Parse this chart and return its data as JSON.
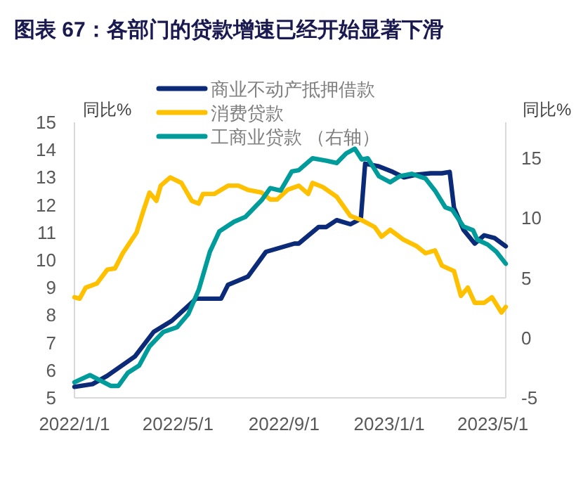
{
  "chart_data": {
    "type": "line",
    "title": "图表 67：各部门的贷款增速已经开始显著下滑",
    "ylabel": "同比%",
    "y2label": "同比%",
    "legend": "top",
    "grid": false,
    "marker": "none",
    "line_style": "solid",
    "xlim": [
      "2022-01-01",
      "2023-05-16"
    ],
    "xticks": [
      {
        "value": "2022-01-01",
        "label": "2022/1/1"
      },
      {
        "value": "2022-05-01",
        "label": "2022/5/1"
      },
      {
        "value": "2022-09-01",
        "label": "2022/9/1"
      },
      {
        "value": "2023-01-01",
        "label": "2023/1/1"
      },
      {
        "value": "2023-05-01",
        "label": "2023/5/1"
      }
    ],
    "ylim": [
      5,
      15
    ],
    "yticks": [
      5,
      6,
      7,
      8,
      9,
      10,
      11,
      12,
      13,
      14,
      15
    ],
    "y2lim": [
      -5,
      18
    ],
    "y2ticks": [
      -5,
      0,
      5,
      10,
      15
    ],
    "series": [
      {
        "name": "商业不动产抵押借款",
        "color": "#0b2a78",
        "x": [
          "2022-01-01",
          "2022-01-22",
          "2022-02-08",
          "2022-03-12",
          "2022-04-03",
          "2022-04-24",
          "2022-05-22",
          "2022-06-02",
          "2022-06-20",
          "2022-06-28",
          "2022-07-21",
          "2022-08-11",
          "2022-09-13",
          "2022-09-18",
          "2022-10-11",
          "2022-10-20",
          "2022-11-01",
          "2022-11-17",
          "2022-11-29",
          "2022-12-04",
          "2022-12-20",
          "2023-01-05",
          "2023-01-18",
          "2023-02-02",
          "2023-02-18",
          "2023-03-03",
          "2023-03-12",
          "2023-03-17",
          "2023-03-28",
          "2023-04-10",
          "2023-04-21",
          "2023-05-03",
          "2023-05-16"
        ],
        "values": [
          5.4,
          5.5,
          5.8,
          6.5,
          7.4,
          7.8,
          8.6,
          8.6,
          8.6,
          9.1,
          9.4,
          10.3,
          10.6,
          10.6,
          11.2,
          11.2,
          11.45,
          11.3,
          11.5,
          13.5,
          13.4,
          13.2,
          13.0,
          13.1,
          13.15,
          13.15,
          13.2,
          11.9,
          11.1,
          10.6,
          10.9,
          10.8,
          10.5
        ]
      },
      {
        "name": "消费贷款",
        "color": "#ffc000",
        "x": [
          "2022-01-01",
          "2022-01-07",
          "2022-01-14",
          "2022-01-27",
          "2022-02-08",
          "2022-02-17",
          "2022-02-26",
          "2022-03-14",
          "2022-03-22",
          "2022-03-29",
          "2022-04-06",
          "2022-04-11",
          "2022-04-22",
          "2022-05-05",
          "2022-05-17",
          "2022-05-25",
          "2022-05-30",
          "2022-06-12",
          "2022-06-28",
          "2022-07-10",
          "2022-07-21",
          "2022-08-06",
          "2022-08-16",
          "2022-08-24",
          "2022-09-05",
          "2022-09-18",
          "2022-09-29",
          "2022-10-04",
          "2022-10-16",
          "2022-11-01",
          "2022-11-17",
          "2022-11-30",
          "2022-12-15",
          "2022-12-23",
          "2023-01-02",
          "2023-01-17",
          "2023-02-02",
          "2023-02-12",
          "2023-02-23",
          "2023-03-03",
          "2023-03-17",
          "2023-03-25",
          "2023-04-02",
          "2023-04-10",
          "2023-04-21",
          "2023-04-30",
          "2023-05-11",
          "2023-05-16"
        ],
        "values": [
          8.65,
          8.6,
          9.0,
          9.15,
          9.65,
          9.7,
          10.25,
          11.0,
          11.8,
          12.45,
          12.15,
          12.7,
          13.0,
          12.8,
          12.15,
          12.05,
          12.4,
          12.4,
          12.7,
          12.7,
          12.55,
          12.45,
          12.2,
          12.2,
          12.55,
          12.7,
          12.4,
          12.8,
          12.65,
          12.3,
          11.6,
          11.45,
          11.2,
          10.85,
          11.1,
          10.75,
          10.5,
          10.25,
          10.35,
          9.8,
          9.6,
          8.7,
          9.0,
          8.45,
          8.45,
          8.65,
          8.1,
          8.3
        ]
      },
      {
        "name": "工商业贷款 （右轴）",
        "color": "#009b9b",
        "axis": "y2",
        "x": [
          "2022-01-01",
          "2022-01-07",
          "2022-01-19",
          "2022-02-12",
          "2022-02-21",
          "2022-03-04",
          "2022-03-17",
          "2022-03-29",
          "2022-04-14",
          "2022-04-30",
          "2022-05-13",
          "2022-05-25",
          "2022-06-07",
          "2022-06-18",
          "2022-07-05",
          "2022-07-18",
          "2022-08-06",
          "2022-08-16",
          "2022-08-28",
          "2022-09-10",
          "2022-09-18",
          "2022-10-04",
          "2022-10-20",
          "2022-11-01",
          "2022-11-12",
          "2022-11-22",
          "2022-11-30",
          "2022-12-07",
          "2022-12-20",
          "2023-01-02",
          "2023-01-13",
          "2023-01-27",
          "2023-02-12",
          "2023-02-23",
          "2023-03-07",
          "2023-03-15",
          "2023-03-28",
          "2023-04-08",
          "2023-04-13",
          "2023-04-25",
          "2023-05-05",
          "2023-05-16"
        ],
        "values": [
          -3.7,
          -3.5,
          -3.1,
          -4.0,
          -4.0,
          -2.9,
          -2.3,
          -0.7,
          0.5,
          0.9,
          2.0,
          4.0,
          7.2,
          8.9,
          9.7,
          10.1,
          11.5,
          12.5,
          12.3,
          13.9,
          14.0,
          15.0,
          14.8,
          14.6,
          15.4,
          15.8,
          14.9,
          15.0,
          13.5,
          13.0,
          13.5,
          13.7,
          13.3,
          12.3,
          10.9,
          10.7,
          9.3,
          9.0,
          8.2,
          7.8,
          7.2,
          6.2
        ]
      }
    ]
  }
}
